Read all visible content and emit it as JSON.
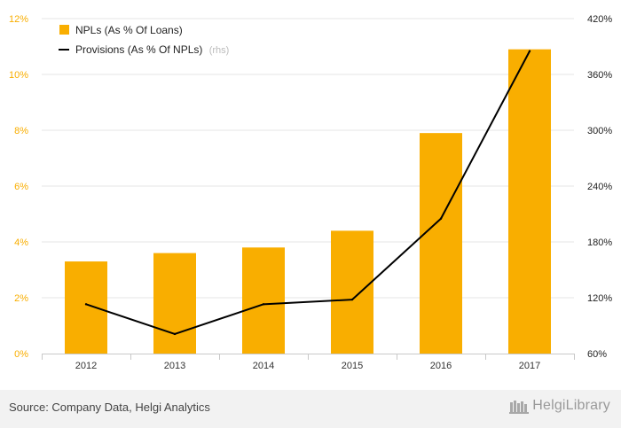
{
  "chart_data": {
    "type": "bar+line",
    "categories": [
      "2012",
      "2013",
      "2014",
      "2015",
      "2016",
      "2017"
    ],
    "series": [
      {
        "name": "NPLs (As % Of Loans)",
        "type": "bar",
        "axis": "left",
        "color": "#F9AE00",
        "values": [
          3.3,
          3.6,
          3.8,
          4.4,
          7.9,
          10.9
        ]
      },
      {
        "name": "Provisions (As % Of NPLs)",
        "type": "line",
        "axis": "right",
        "color": "#000000",
        "values": [
          113,
          81,
          113,
          118,
          205,
          385
        ]
      }
    ],
    "ylim_left": [
      0,
      12
    ],
    "yticks_left": [
      0,
      2,
      4,
      6,
      8,
      10,
      12
    ],
    "ytick_labels_left": [
      "0%",
      "2%",
      "4%",
      "6%",
      "8%",
      "10%",
      "12%"
    ],
    "ylim_right": [
      60,
      420
    ],
    "yticks_right": [
      60,
      120,
      180,
      240,
      300,
      360,
      420
    ],
    "ytick_labels_right": [
      "60%",
      "120%",
      "180%",
      "240%",
      "300%",
      "360%",
      "420%"
    ],
    "left_axis_color": "#F9AE00",
    "right_axis_color": "#222222",
    "grid": true,
    "legend_position": "top-left",
    "legend_rhs_note": "(rhs)"
  },
  "footer": {
    "source": "Source: Company Data, Helgi Analytics",
    "brand": "HelgiLibrary"
  }
}
